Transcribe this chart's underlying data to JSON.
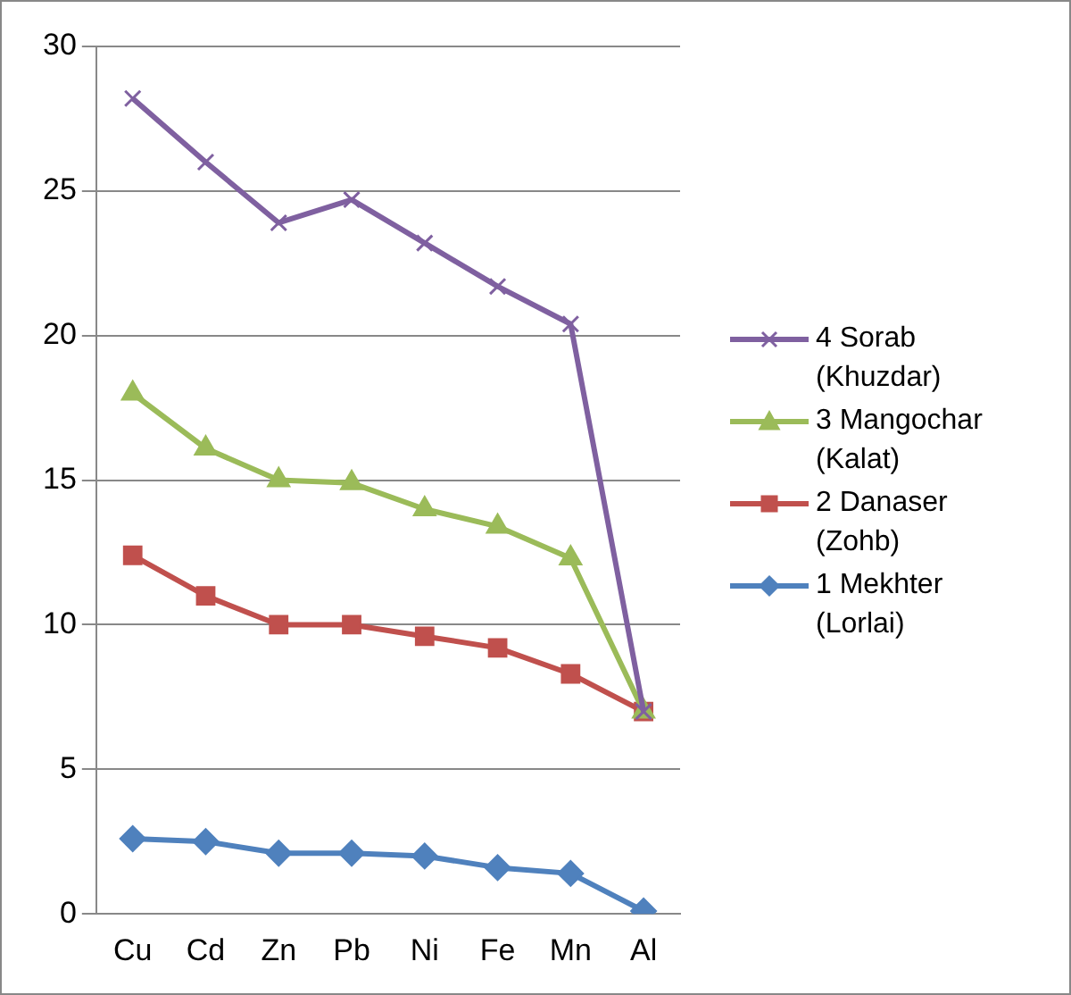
{
  "chart_data": {
    "type": "line",
    "categories": [
      "Cu",
      "Cd",
      "Zn",
      "Pb",
      "Ni",
      "Fe",
      "Mn",
      "Al"
    ],
    "series": [
      {
        "name": "4 Sorab (Khuzdar)",
        "color": "#7f60a0",
        "marker": "cross",
        "values": [
          28.2,
          26.0,
          23.9,
          24.7,
          23.2,
          21.7,
          20.4,
          7.0
        ]
      },
      {
        "name": "3 Mangochar (Kalat)",
        "color": "#9bbb59",
        "marker": "triangle",
        "values": [
          18.0,
          16.1,
          15.0,
          14.9,
          14.0,
          13.4,
          12.3,
          7.0
        ]
      },
      {
        "name": "2 Danaser (Zohb)",
        "color": "#c0504d",
        "marker": "square",
        "values": [
          12.4,
          11.0,
          10.0,
          10.0,
          9.6,
          9.2,
          8.3,
          7.0
        ]
      },
      {
        "name": "1 Mekhter (Lorlai)",
        "color": "#4f81bd",
        "marker": "diamond",
        "values": [
          2.6,
          2.5,
          2.1,
          2.1,
          2.0,
          1.6,
          1.4,
          0.1
        ]
      }
    ],
    "ylim": [
      0,
      30
    ],
    "yticks": [
      0,
      5,
      10,
      15,
      20,
      25,
      30
    ],
    "grid": "y",
    "legend": "right"
  }
}
